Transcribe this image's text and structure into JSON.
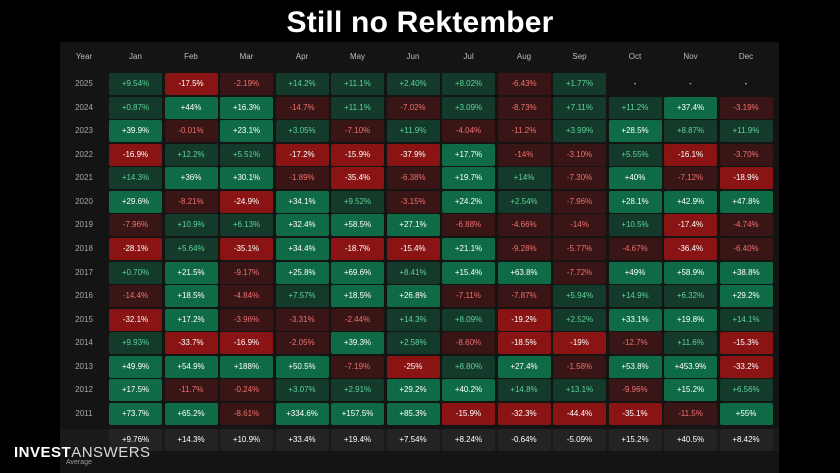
{
  "title": "Still no Rektember",
  "brand": {
    "bold": "INVEST",
    "light": "ANSWERS"
  },
  "chart_data": {
    "type": "heatmap",
    "corner_label": "Year",
    "months": [
      "Jan",
      "Feb",
      "Mar",
      "Apr",
      "May",
      "Jun",
      "Jul",
      "Aug",
      "Sep",
      "Oct",
      "Nov",
      "Dec"
    ],
    "rows": [
      {
        "year": "2025",
        "values": [
          "+9.54%",
          "-17.5%",
          "-2.19%",
          "+14.2%",
          "+11.1%",
          "+2.40%",
          "+8.02%",
          "-6.43%",
          "+1.77%",
          "-",
          "-",
          "-"
        ]
      },
      {
        "year": "2024",
        "values": [
          "+0.87%",
          "+44%",
          "+16.3%",
          "-14.7%",
          "+11.1%",
          "-7.02%",
          "+3.09%",
          "-8.73%",
          "+7.11%",
          "+11.2%",
          "+37.4%",
          "-3.19%"
        ]
      },
      {
        "year": "2023",
        "values": [
          "+39.9%",
          "-0.01%",
          "+23.1%",
          "+3.05%",
          "-7.10%",
          "+11.9%",
          "-4.04%",
          "-11.2%",
          "+3.99%",
          "+28.5%",
          "+8.87%",
          "+11.9%"
        ]
      },
      {
        "year": "2022",
        "values": [
          "-16.9%",
          "+12.2%",
          "+5.51%",
          "-17.2%",
          "-15.9%",
          "-37.9%",
          "+17.7%",
          "-14%",
          "-3.10%",
          "+5.55%",
          "-16.1%",
          "-3.70%"
        ]
      },
      {
        "year": "2021",
        "values": [
          "+14.3%",
          "+36%",
          "+30.1%",
          "-1.89%",
          "-35.4%",
          "-6.38%",
          "+19.7%",
          "+14%",
          "-7.30%",
          "+40%",
          "-7.12%",
          "-18.9%"
        ]
      },
      {
        "year": "2020",
        "values": [
          "+29.6%",
          "-8.21%",
          "-24.9%",
          "+34.1%",
          "+9.52%",
          "-3.15%",
          "+24.2%",
          "+2.54%",
          "-7.96%",
          "+28.1%",
          "+42.9%",
          "+47.8%"
        ]
      },
      {
        "year": "2019",
        "values": [
          "-7.96%",
          "+10.9%",
          "+6.13%",
          "+32.4%",
          "+58.5%",
          "+27.1%",
          "-6.88%",
          "-4.66%",
          "-14%",
          "+10.5%",
          "-17.4%",
          "-4.74%"
        ]
      },
      {
        "year": "2018",
        "values": [
          "-28.1%",
          "+5.64%",
          "-35.1%",
          "+34.4%",
          "-18.7%",
          "-15.4%",
          "+21.1%",
          "-9.28%",
          "-5.77%",
          "-4.67%",
          "-36.4%",
          "-6.40%"
        ]
      },
      {
        "year": "2017",
        "values": [
          "+0.70%",
          "+21.5%",
          "-9.17%",
          "+25.8%",
          "+69.6%",
          "+8.41%",
          "+15.4%",
          "+63.8%",
          "-7.72%",
          "+49%",
          "+58.9%",
          "+38.8%"
        ]
      },
      {
        "year": "2016",
        "values": [
          "-14.4%",
          "+18.5%",
          "-4.84%",
          "+7.57%",
          "+18.5%",
          "+26.8%",
          "-7.11%",
          "-7.87%",
          "+5.94%",
          "+14.9%",
          "+6.32%",
          "+29.2%"
        ]
      },
      {
        "year": "2015",
        "values": [
          "-32.1%",
          "+17.2%",
          "-3.96%",
          "-3.31%",
          "-2.44%",
          "+14.3%",
          "+8.09%",
          "-19.2%",
          "+2.52%",
          "+33.1%",
          "+19.8%",
          "+14.1%"
        ]
      },
      {
        "year": "2014",
        "values": [
          "+9.93%",
          "-33.7%",
          "-16.9%",
          "-2.05%",
          "+39.3%",
          "+2.58%",
          "-8.60%",
          "-18.5%",
          "-19%",
          "-12.7%",
          "+11.6%",
          "-15.3%"
        ]
      },
      {
        "year": "2013",
        "values": [
          "+49.9%",
          "+54.9%",
          "+188%",
          "+50.5%",
          "-7.19%",
          "-25%",
          "+8.80%",
          "+27.4%",
          "-1.58%",
          "+53.8%",
          "+453.9%",
          "-33.2%"
        ]
      },
      {
        "year": "2012",
        "values": [
          "+17.5%",
          "-11.7%",
          "-0.24%",
          "+3.07%",
          "+2.91%",
          "+29.2%",
          "+40.2%",
          "+14.8%",
          "+13.1%",
          "-9.96%",
          "+15.2%",
          "+6.56%"
        ]
      },
      {
        "year": "2011",
        "values": [
          "+73.7%",
          "+65.2%",
          "-8.61%",
          "+334.6%",
          "+157.5%",
          "+85.3%",
          "-15.9%",
          "-32.3%",
          "-44.4%",
          "-35.1%",
          "-11.5%",
          "+55%"
        ]
      }
    ],
    "average_label": "Average",
    "average": [
      "+9.76%",
      "+14.3%",
      "+10.9%",
      "+33.4%",
      "+19.4%",
      "+7.54%",
      "+8.24%",
      "-0.64%",
      "-5.09%",
      "+15.2%",
      "+40.5%",
      "+8.42%"
    ],
    "colors": {
      "positive_strong": "#0f6b45",
      "positive_weak": "#133a2a",
      "negative_strong": "#8a1414",
      "negative_weak": "#3a1515",
      "positive_text": "#5fd39a",
      "negative_text": "#f07070",
      "neutral_text": "#ffffff"
    }
  }
}
